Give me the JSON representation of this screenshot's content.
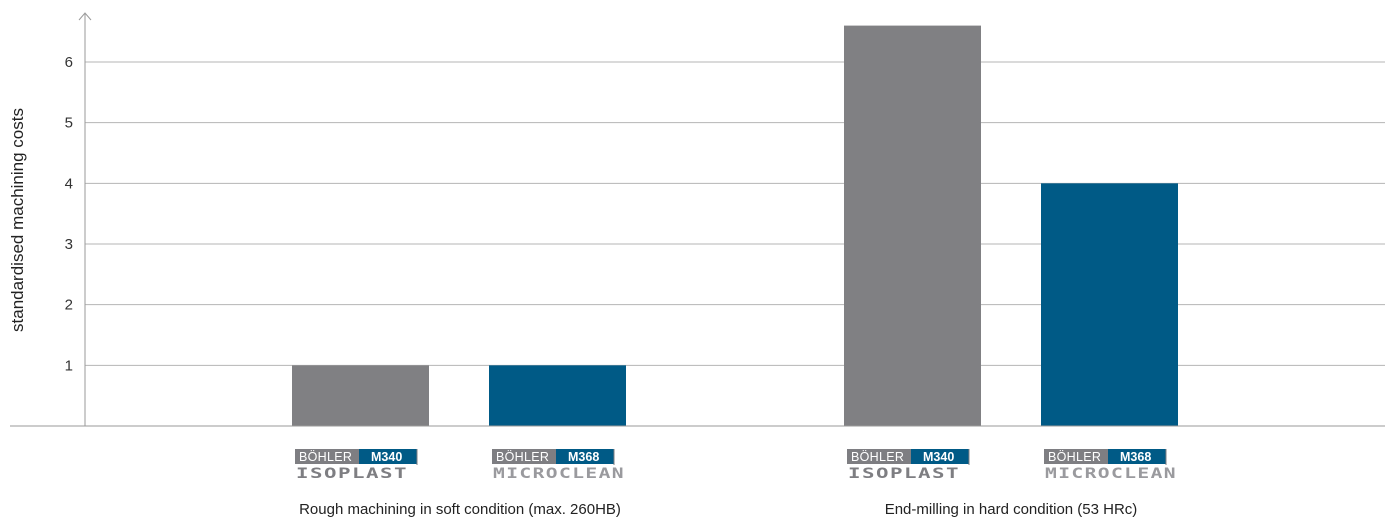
{
  "chart_data": {
    "type": "bar",
    "ylabel": "standardised machining costs",
    "ylim": [
      0,
      6.6
    ],
    "yticks": [
      1,
      2,
      3,
      4,
      5,
      6
    ],
    "grid": true,
    "groups": [
      {
        "label": "Rough machining in soft condition (max. 260HB)",
        "bars": [
          {
            "brand": "BÖHLER",
            "grade": "M340",
            "sub": "ISOPLAST",
            "value": 1,
            "color": "#808083"
          },
          {
            "brand": "BÖHLER",
            "grade": "M368",
            "sub": "MICROCLEAN",
            "value": 1,
            "color": "#005a86"
          }
        ]
      },
      {
        "label": "End-milling in hard condition (53 HRc)",
        "bars": [
          {
            "brand": "BÖHLER",
            "grade": "M340",
            "sub": "ISOPLAST",
            "value": 6.6,
            "color": "#808083"
          },
          {
            "brand": "BÖHLER",
            "grade": "M368",
            "sub": "MICROCLEAN",
            "value": 4,
            "color": "#005a86"
          }
        ]
      }
    ]
  }
}
